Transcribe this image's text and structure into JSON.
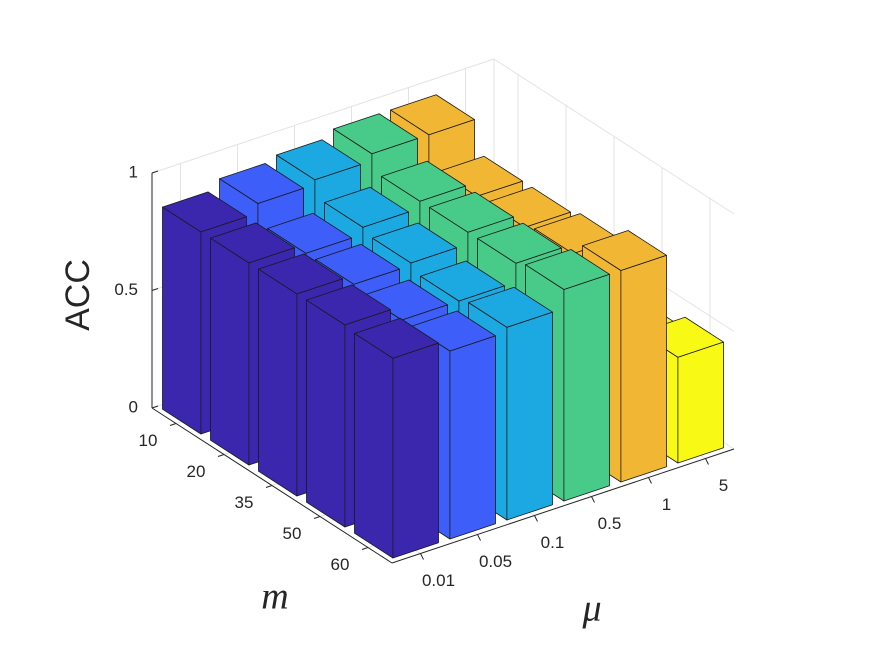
{
  "chart_data": {
    "type": "bar3d",
    "xlabel": "m",
    "ylabel": "μ",
    "zlabel": "ACC",
    "categories": [
      "10",
      "20",
      "35",
      "50",
      "60"
    ],
    "series": [
      {
        "name": "0.01",
        "color": "#3b27ad",
        "values": [
          0.86,
          0.86,
          0.86,
          0.86,
          0.85
        ]
      },
      {
        "name": "0.05",
        "color": "#3d5ef8",
        "values": [
          0.9,
          0.82,
          0.82,
          0.8,
          0.8
        ]
      },
      {
        "name": "0.1",
        "color": "#1ca8e0",
        "values": [
          0.92,
          0.85,
          0.83,
          0.8,
          0.82
        ]
      },
      {
        "name": "0.5",
        "color": "#48ca88",
        "values": [
          0.95,
          0.88,
          0.88,
          0.88,
          0.9
        ]
      },
      {
        "name": "1",
        "color": "#f0b634",
        "values": [
          0.95,
          0.82,
          0.82,
          0.84,
          0.9
        ]
      },
      {
        "name": "5",
        "color": "#f8f914",
        "values": [
          0.4,
          0.4,
          0.4,
          0.4,
          0.45
        ]
      }
    ],
    "zlim": [
      0,
      1
    ],
    "zticks": [
      0,
      0.5,
      1
    ],
    "grid": true
  }
}
